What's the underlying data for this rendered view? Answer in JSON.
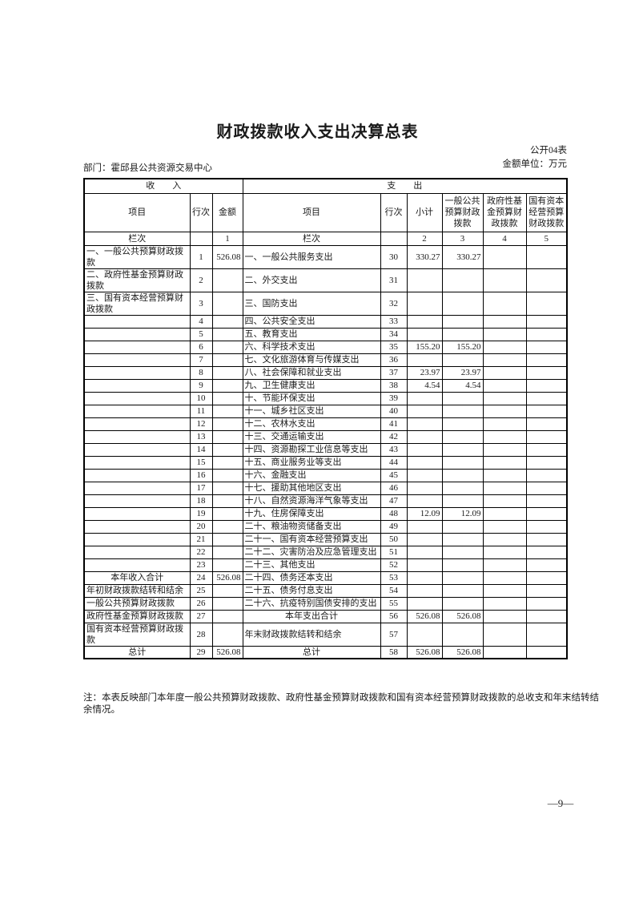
{
  "page": {
    "title": "财政拨款收入支出决算总表",
    "table_code": "公开04表",
    "unit_label": "金额单位：万元",
    "department": "部门：霍邱县公共资源交易中心",
    "note": "注：本表反映部门本年度一般公共预算财政拨款、政府性基金预算财政拨款和国有资本经营预算财政拨款的总收支和年末结转结余情况。",
    "page_number": "—9—"
  },
  "table": {
    "group_headers": {
      "income": "收　　入",
      "expense": "支　　出"
    },
    "columns": {
      "income_item": "项目",
      "income_line": "行次",
      "income_amount": "金额",
      "expense_item": "项目",
      "expense_line": "行次",
      "subtotal": "小计",
      "general_budget": "一般公共预算财政拨款",
      "gov_fund": "政府性基金预算财政拨款",
      "state_capital": "国有资本经营预算财政拨款"
    },
    "lanci": {
      "income_label": "栏次",
      "income_line_no": "",
      "income_amount_no": "1",
      "expense_label": "栏次",
      "expense_line_no": "",
      "subtotal_no": "2",
      "general_no": "3",
      "govfund_no": "4",
      "statecap_no": "5"
    },
    "rows": [
      {
        "in": "一、一般公共预算财政拨款",
        "inl": "1",
        "ina": "526.08",
        "ex": "一、一般公共服务支出",
        "exl": "30",
        "st": "330.27",
        "gb": "330.27",
        "gf": "",
        "sc": ""
      },
      {
        "in": "二、政府性基金预算财政拨款",
        "inl": "2",
        "ina": "",
        "ex": "二、外交支出",
        "exl": "31",
        "st": "",
        "gb": "",
        "gf": "",
        "sc": ""
      },
      {
        "in": "三、国有资本经营预算财政拨款",
        "inl": "3",
        "ina": "",
        "ex": "三、国防支出",
        "exl": "32",
        "st": "",
        "gb": "",
        "gf": "",
        "sc": ""
      },
      {
        "in": "",
        "inl": "4",
        "ina": "",
        "ex": "四、公共安全支出",
        "exl": "33",
        "st": "",
        "gb": "",
        "gf": "",
        "sc": ""
      },
      {
        "in": "",
        "inl": "5",
        "ina": "",
        "ex": "五、教育支出",
        "exl": "34",
        "st": "",
        "gb": "",
        "gf": "",
        "sc": ""
      },
      {
        "in": "",
        "inl": "6",
        "ina": "",
        "ex": "六、科学技术支出",
        "exl": "35",
        "st": "155.20",
        "gb": "155.20",
        "gf": "",
        "sc": ""
      },
      {
        "in": "",
        "inl": "7",
        "ina": "",
        "ex": "七、文化旅游体育与传媒支出",
        "exl": "36",
        "st": "",
        "gb": "",
        "gf": "",
        "sc": ""
      },
      {
        "in": "",
        "inl": "8",
        "ina": "",
        "ex": "八、社会保障和就业支出",
        "exl": "37",
        "st": "23.97",
        "gb": "23.97",
        "gf": "",
        "sc": ""
      },
      {
        "in": "",
        "inl": "9",
        "ina": "",
        "ex": "九、卫生健康支出",
        "exl": "38",
        "st": "4.54",
        "gb": "4.54",
        "gf": "",
        "sc": ""
      },
      {
        "in": "",
        "inl": "10",
        "ina": "",
        "ex": "十、节能环保支出",
        "exl": "39",
        "st": "",
        "gb": "",
        "gf": "",
        "sc": ""
      },
      {
        "in": "",
        "inl": "11",
        "ina": "",
        "ex": "十一、城乡社区支出",
        "exl": "40",
        "st": "",
        "gb": "",
        "gf": "",
        "sc": ""
      },
      {
        "in": "",
        "inl": "12",
        "ina": "",
        "ex": "十二、农林水支出",
        "exl": "41",
        "st": "",
        "gb": "",
        "gf": "",
        "sc": ""
      },
      {
        "in": "",
        "inl": "13",
        "ina": "",
        "ex": "十三、交通运输支出",
        "exl": "42",
        "st": "",
        "gb": "",
        "gf": "",
        "sc": ""
      },
      {
        "in": "",
        "inl": "14",
        "ina": "",
        "ex": "十四、资源勘探工业信息等支出",
        "exl": "43",
        "st": "",
        "gb": "",
        "gf": "",
        "sc": ""
      },
      {
        "in": "",
        "inl": "15",
        "ina": "",
        "ex": "十五、商业服务业等支出",
        "exl": "44",
        "st": "",
        "gb": "",
        "gf": "",
        "sc": ""
      },
      {
        "in": "",
        "inl": "16",
        "ina": "",
        "ex": "十六、金融支出",
        "exl": "45",
        "st": "",
        "gb": "",
        "gf": "",
        "sc": ""
      },
      {
        "in": "",
        "inl": "17",
        "ina": "",
        "ex": "十七、援助其他地区支出",
        "exl": "46",
        "st": "",
        "gb": "",
        "gf": "",
        "sc": ""
      },
      {
        "in": "",
        "inl": "18",
        "ina": "",
        "ex": "十八、自然资源海洋气象等支出",
        "exl": "47",
        "st": "",
        "gb": "",
        "gf": "",
        "sc": ""
      },
      {
        "in": "",
        "inl": "19",
        "ina": "",
        "ex": "十九、住房保障支出",
        "exl": "48",
        "st": "12.09",
        "gb": "12.09",
        "gf": "",
        "sc": ""
      },
      {
        "in": "",
        "inl": "20",
        "ina": "",
        "ex": "二十、粮油物资储备支出",
        "exl": "49",
        "st": "",
        "gb": "",
        "gf": "",
        "sc": ""
      },
      {
        "in": "",
        "inl": "21",
        "ina": "",
        "ex": "二十一、国有资本经营预算支出",
        "exl": "50",
        "st": "",
        "gb": "",
        "gf": "",
        "sc": ""
      },
      {
        "in": "",
        "inl": "22",
        "ina": "",
        "ex": "二十二、灾害防治及应急管理支出",
        "exl": "51",
        "st": "",
        "gb": "",
        "gf": "",
        "sc": ""
      },
      {
        "in": "",
        "inl": "23",
        "ina": "",
        "ex": "二十三、其他支出",
        "exl": "52",
        "st": "",
        "gb": "",
        "gf": "",
        "sc": ""
      },
      {
        "in": "本年收入合计",
        "ins": "cb",
        "inl": "24",
        "ina": "526.08",
        "ex": "二十四、债务还本支出",
        "exl": "53",
        "st": "",
        "gb": "",
        "gf": "",
        "sc": ""
      },
      {
        "in": "年初财政拨款结转和结余",
        "inl": "25",
        "ina": "",
        "ex": "二十五、债务付息支出",
        "exl": "54",
        "st": "",
        "gb": "",
        "gf": "",
        "sc": ""
      },
      {
        "in": "一般公共预算财政拨款",
        "ins": "ind2",
        "inl": "26",
        "ina": "",
        "ex": "二十六、抗疫特别国债安排的支出",
        "exl": "55",
        "st": "",
        "gb": "",
        "gf": "",
        "sc": ""
      },
      {
        "in": "政府性基金预算财政拨款",
        "ins": "ind",
        "inl": "27",
        "ina": "",
        "ex": "本年支出合计",
        "exs": "cb",
        "exl": "56",
        "st": "526.08",
        "gb": "526.08",
        "gf": "",
        "sc": ""
      },
      {
        "in": "国有资本经营预算财政拨款",
        "ins": "ind",
        "inl": "28",
        "ina": "",
        "ex": "年末财政拨款结转和结余",
        "exl": "57",
        "st": "",
        "gb": "",
        "gf": "",
        "sc": ""
      },
      {
        "in": "总计",
        "ins": "cb",
        "inl": "29",
        "ina": "526.08",
        "ex": "总计",
        "exs": "cb",
        "exl": "58",
        "st": "526.08",
        "gb": "526.08",
        "gf": "",
        "sc": ""
      }
    ]
  }
}
